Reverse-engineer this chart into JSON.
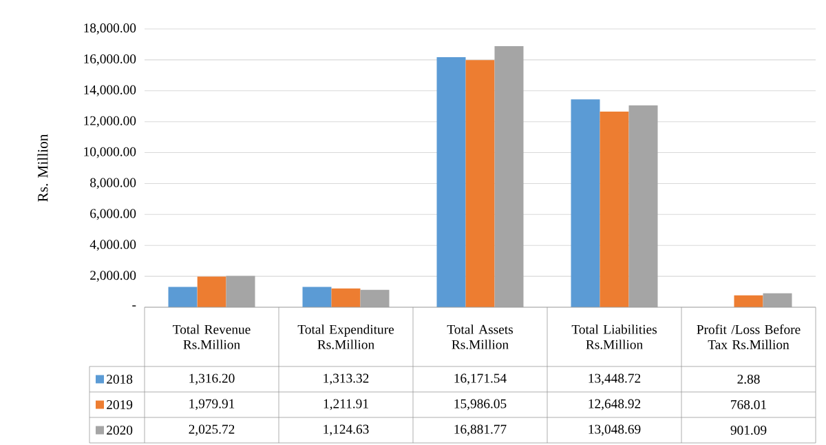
{
  "chart_data": {
    "type": "bar",
    "ylabel": "Rs. Million",
    "categories": [
      "Total Revenue Rs.Million",
      "Total Expenditure Rs.Million",
      "Total Assets Rs.Million",
      "Total Liabilities Rs.Million",
      "Profit /Loss Before Tax Rs.Million"
    ],
    "series": [
      {
        "name": "2018",
        "color": "#5b9bd5",
        "values": [
          1316.2,
          1313.32,
          16171.54,
          13448.72,
          2.88
        ],
        "value_labels": [
          "1,316.20",
          "1,313.32",
          "16,171.54",
          "13,448.72",
          "2.88"
        ]
      },
      {
        "name": "2019",
        "color": "#ed7d31",
        "values": [
          1979.91,
          1211.91,
          15986.05,
          12648.92,
          768.01
        ],
        "value_labels": [
          "1,979.91",
          "1,211.91",
          "15,986.05",
          "12,648.92",
          "768.01"
        ]
      },
      {
        "name": "2020",
        "color": "#a5a5a5",
        "values": [
          2025.72,
          1124.63,
          16881.77,
          13048.69,
          901.09
        ],
        "value_labels": [
          "2,025.72",
          "1,124.63",
          "16,881.77",
          "13,048.69",
          "901.09"
        ]
      }
    ],
    "ylim": [
      0,
      18000
    ],
    "yticks": [
      {
        "value": 0,
        "label": "-"
      },
      {
        "value": 2000,
        "label": "2,000.00"
      },
      {
        "value": 4000,
        "label": "4,000.00"
      },
      {
        "value": 6000,
        "label": "6,000.00"
      },
      {
        "value": 8000,
        "label": "8,000.00"
      },
      {
        "value": 10000,
        "label": "10,000.00"
      },
      {
        "value": 12000,
        "label": "12,000.00"
      },
      {
        "value": 14000,
        "label": "14,000.00"
      },
      {
        "value": 16000,
        "label": "16,000.00"
      },
      {
        "value": 18000,
        "label": "18,000.00"
      }
    ],
    "grid": "y",
    "legend": "bottom"
  }
}
